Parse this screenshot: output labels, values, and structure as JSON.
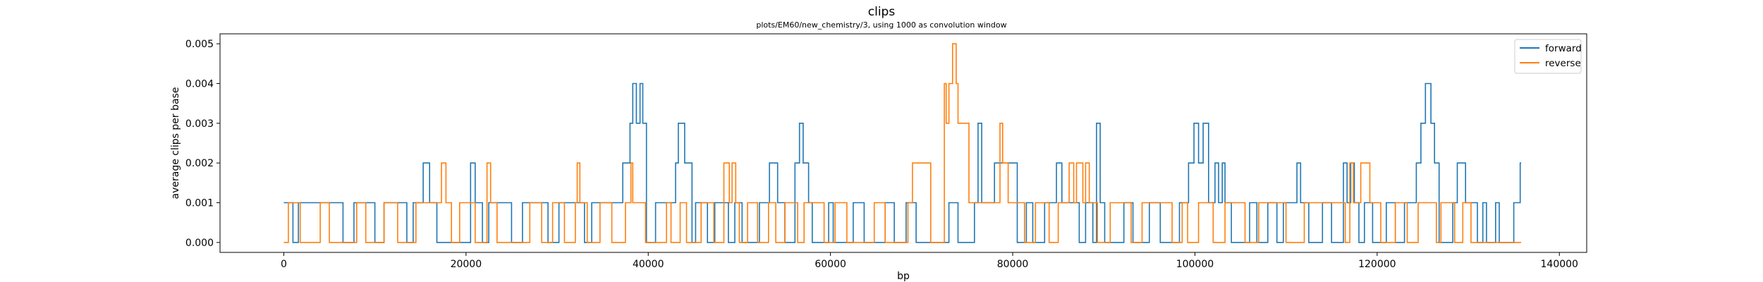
{
  "chart_data": {
    "type": "line",
    "title": "clips",
    "subtitle": "plots/EM60/new_chemistry/3, using 1000 as convolution window",
    "xlabel": "bp",
    "ylabel": "average clips per base",
    "xlim": [
      -7000,
      143000
    ],
    "ylim": [
      -0.00025,
      0.00525
    ],
    "xticks": [
      0,
      20000,
      40000,
      60000,
      80000,
      100000,
      120000,
      140000
    ],
    "xtick_labels": [
      "0",
      "20000",
      "40000",
      "60000",
      "80000",
      "100000",
      "120000",
      "140000"
    ],
    "yticks": [
      0,
      0.001,
      0.002,
      0.003,
      0.004,
      0.005
    ],
    "ytick_labels": [
      "0.000",
      "0.001",
      "0.002",
      "0.003",
      "0.004",
      "0.005"
    ],
    "grid": false,
    "legend_position": "upper right",
    "series": [
      {
        "name": "forward",
        "color": "#1f77b4",
        "x": [
          0,
          1000,
          1600,
          6500,
          7700,
          10000,
          11000,
          13500,
          14200,
          15300,
          16000,
          16800,
          20500,
          21000,
          21800,
          22500,
          25000,
          26200,
          29000,
          30200,
          33000,
          33800,
          37200,
          38000,
          38300,
          38700,
          39100,
          39400,
          39800,
          40800,
          43000,
          43300,
          44000,
          44800,
          45200,
          46500,
          47300,
          48800,
          49500,
          50300,
          52200,
          53300,
          54200,
          55000,
          56100,
          56600,
          57000,
          57600,
          58000,
          59800,
          60300,
          62500,
          63700,
          66000,
          67000,
          68300,
          69400,
          73000,
          74000,
          75800,
          76200,
          76600,
          78000,
          80500,
          81500,
          82200,
          83500,
          84800,
          85400,
          87300,
          88000,
          88800,
          89200,
          89600,
          90100,
          92200,
          93200,
          95000,
          96200,
          98300,
          99300,
          99900,
          100400,
          100900,
          101500,
          102200,
          102600,
          103000,
          103300,
          104000,
          106000,
          106800,
          108000,
          109000,
          109700,
          111200,
          111600,
          112500,
          114000,
          115000,
          116300,
          116700,
          117100,
          117500,
          118000,
          118600,
          119500,
          121000,
          122000,
          123000,
          124300,
          124800,
          125300,
          125900,
          126300,
          126800,
          128300,
          128800,
          129700,
          131000,
          131600,
          132000,
          133000,
          133400,
          135000,
          135700,
          135800
        ],
        "y": [
          0.001,
          0.0,
          0.001,
          0.0,
          0.001,
          0.0,
          0.001,
          0.0,
          0.001,
          0.002,
          0.001,
          0.0,
          0.002,
          0.001,
          0.0,
          0.001,
          0.0,
          0.001,
          0.0,
          0.001,
          0.0,
          0.001,
          0.002,
          0.003,
          0.004,
          0.003,
          0.004,
          0.003,
          0.0,
          0.001,
          0.002,
          0.003,
          0.002,
          0.0,
          0.001,
          0.0,
          0.001,
          0.0,
          0.001,
          0.0,
          0.001,
          0.002,
          0.001,
          0.0,
          0.002,
          0.003,
          0.002,
          0.001,
          0.0,
          0.001,
          0.0,
          0.001,
          0.0,
          0.001,
          0.0,
          0.001,
          0.0,
          0.001,
          0.0,
          0.001,
          0.003,
          0.001,
          0.002,
          0.0,
          0.001,
          0.0,
          0.001,
          0.002,
          0.001,
          0.0,
          0.001,
          0.0,
          0.003,
          0.001,
          0.0,
          0.001,
          0.0,
          0.001,
          0.0,
          0.001,
          0.002,
          0.003,
          0.002,
          0.003,
          0.001,
          0.002,
          0.001,
          0.002,
          0.001,
          0.0,
          0.001,
          0.0,
          0.001,
          0.0,
          0.001,
          0.002,
          0.001,
          0.0,
          0.001,
          0.0,
          0.002,
          0.001,
          0.002,
          0.001,
          0.0,
          0.001,
          0.0,
          0.001,
          0.0,
          0.001,
          0.002,
          0.003,
          0.004,
          0.003,
          0.002,
          0.0,
          0.001,
          0.002,
          0.001,
          0.0,
          0.001,
          0.0,
          0.001,
          0.0,
          0.001,
          0.002,
          0.002
        ]
      },
      {
        "name": "reverse",
        "color": "#ff7f0e",
        "x": [
          0,
          500,
          1800,
          4000,
          5000,
          8000,
          9000,
          11000,
          12500,
          14500,
          16000,
          17300,
          17800,
          18400,
          19300,
          21000,
          22300,
          22700,
          23400,
          27000,
          28300,
          29500,
          30800,
          32000,
          32200,
          32500,
          33300,
          34700,
          36000,
          37500,
          38100,
          38300,
          39700,
          42000,
          42500,
          43500,
          44200,
          45800,
          47200,
          48300,
          48900,
          49200,
          49600,
          50000,
          50900,
          52000,
          53200,
          54000,
          55000,
          56400,
          57100,
          59300,
          60500,
          61800,
          64800,
          66000,
          68500,
          69000,
          71000,
          72500,
          72700,
          73000,
          73400,
          73800,
          74000,
          75200,
          77000,
          78600,
          78900,
          79500,
          81300,
          82500,
          84000,
          85000,
          86200,
          86700,
          87000,
          87700,
          88000,
          88400,
          89300,
          90700,
          93000,
          94200,
          97500,
          98600,
          99200,
          100400,
          102000,
          103300,
          105500,
          107000,
          110000,
          112000,
          116500,
          117000,
          117400,
          118200,
          119200,
          120400,
          122000,
          123300,
          124500,
          126500,
          127000,
          127800,
          128500,
          129400,
          130300,
          135800
        ],
        "y": [
          0.0,
          0.001,
          0.0,
          0.001,
          0.0,
          0.001,
          0.0,
          0.001,
          0.0,
          0.001,
          0.001,
          0.002,
          0.001,
          0.0,
          0.001,
          0.0,
          0.002,
          0.001,
          0.0,
          0.001,
          0.0,
          0.001,
          0.0,
          0.001,
          0.002,
          0.001,
          0.0,
          0.001,
          0.0,
          0.001,
          0.002,
          0.001,
          0.0,
          0.001,
          0.0,
          0.001,
          0.0,
          0.001,
          0.0,
          0.002,
          0.001,
          0.002,
          0.001,
          0.0,
          0.001,
          0.0,
          0.001,
          0.0,
          0.001,
          0.0,
          0.001,
          0.0,
          0.001,
          0.0,
          0.001,
          0.0,
          0.001,
          0.002,
          0.0,
          0.004,
          0.003,
          0.004,
          0.005,
          0.004,
          0.003,
          0.001,
          0.001,
          0.003,
          0.002,
          0.001,
          0.0,
          0.001,
          0.0,
          0.001,
          0.002,
          0.001,
          0.002,
          0.001,
          0.002,
          0.001,
          0.0,
          0.001,
          0.0,
          0.001,
          0.0,
          0.001,
          0.0,
          0.001,
          0.0,
          0.001,
          0.0,
          0.001,
          0.0,
          0.001,
          0.0,
          0.002,
          0.001,
          0.002,
          0.001,
          0.0,
          0.001,
          0.0,
          0.001,
          0.0,
          0.001,
          0.001,
          0.0,
          0.001,
          0.0,
          0.0
        ]
      }
    ]
  }
}
